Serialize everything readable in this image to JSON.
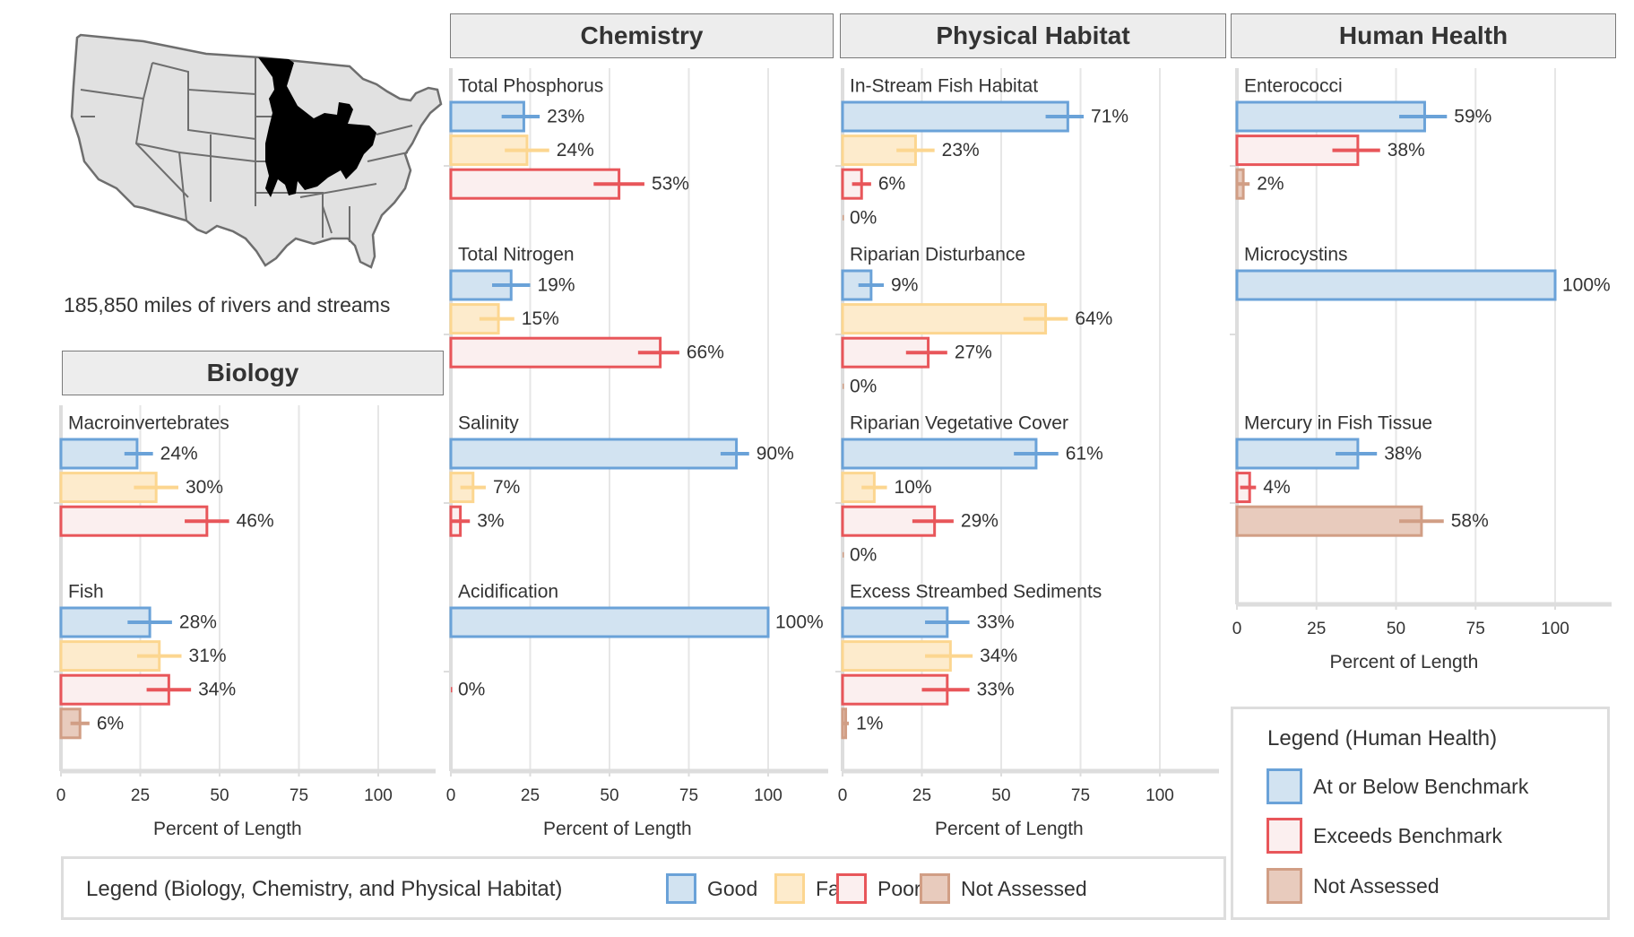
{
  "map": {
    "subtitle": "185,850 miles of rivers and streams",
    "region_highlight": "Upper Mississippi / Midwest basin",
    "land_color": "#e1e1e1",
    "border_color": "#6e6e6e",
    "highlight_color": "#000000"
  },
  "colors": {
    "good": {
      "fill": "#d2e3f1",
      "stroke": "#6aa2d8"
    },
    "fair": {
      "fill": "#fdebcc",
      "stroke": "#fcd690"
    },
    "poor": {
      "fill": "#fbefef",
      "stroke": "#e8565a"
    },
    "not_assessed": {
      "fill": "#e8cbbd",
      "stroke": "#d19e85"
    },
    "grid": "#e6e6e6",
    "axis": "#dddddd"
  },
  "legend_main": {
    "title": "Legend (Biology, Chemistry, and Physical Habitat)",
    "items": [
      {
        "key": "good",
        "label": "Good"
      },
      {
        "key": "fair",
        "label": "Fair"
      },
      {
        "key": "poor",
        "label": "Poor"
      },
      {
        "key": "not_assessed",
        "label": "Not Assessed"
      }
    ]
  },
  "legend_hh": {
    "title": "Legend (Human Health)",
    "items": [
      {
        "key": "good",
        "label": "At or Below Benchmark"
      },
      {
        "key": "poor",
        "label": "Exceeds Benchmark"
      },
      {
        "key": "not_assessed",
        "label": "Not Assessed"
      }
    ]
  },
  "chart_data": [
    {
      "type": "bar",
      "title": "Biology",
      "xlabel": "Percent of Length",
      "xlim": [
        0,
        115
      ],
      "ticks": [
        0,
        25,
        50,
        75,
        100
      ],
      "grid": true,
      "indicators": [
        {
          "name": "Macroinvertebrates",
          "bars": [
            {
              "cat": "good",
              "value": 24,
              "ci": [
                20,
                29
              ],
              "label": "24%"
            },
            {
              "cat": "fair",
              "value": 30,
              "ci": [
                23,
                37
              ],
              "label": "30%"
            },
            {
              "cat": "poor",
              "value": 46,
              "ci": [
                39,
                53
              ],
              "label": "46%"
            }
          ]
        },
        {
          "name": "Fish",
          "bars": [
            {
              "cat": "good",
              "value": 28,
              "ci": [
                21,
                35
              ],
              "label": "28%"
            },
            {
              "cat": "fair",
              "value": 31,
              "ci": [
                24,
                38
              ],
              "label": "31%"
            },
            {
              "cat": "poor",
              "value": 34,
              "ci": [
                27,
                41
              ],
              "label": "34%"
            },
            {
              "cat": "not_assessed",
              "value": 6,
              "ci": [
                3,
                9
              ],
              "label": "6%"
            }
          ]
        }
      ]
    },
    {
      "type": "bar",
      "title": "Chemistry",
      "xlabel": "Percent of Length",
      "xlim": [
        0,
        115
      ],
      "ticks": [
        0,
        25,
        50,
        75,
        100
      ],
      "grid": true,
      "indicators": [
        {
          "name": "Total Phosphorus",
          "bars": [
            {
              "cat": "good",
              "value": 23,
              "ci": [
                16,
                28
              ],
              "label": "23%"
            },
            {
              "cat": "fair",
              "value": 24,
              "ci": [
                17,
                31
              ],
              "label": "24%"
            },
            {
              "cat": "poor",
              "value": 53,
              "ci": [
                45,
                61
              ],
              "label": "53%"
            }
          ]
        },
        {
          "name": "Total Nitrogen",
          "bars": [
            {
              "cat": "good",
              "value": 19,
              "ci": [
                13,
                25
              ],
              "label": "19%"
            },
            {
              "cat": "fair",
              "value": 15,
              "ci": [
                9,
                20
              ],
              "label": "15%"
            },
            {
              "cat": "poor",
              "value": 66,
              "ci": [
                59,
                72
              ],
              "label": "66%"
            }
          ]
        },
        {
          "name": "Salinity",
          "bars": [
            {
              "cat": "good",
              "value": 90,
              "ci": [
                85,
                94
              ],
              "label": "90%"
            },
            {
              "cat": "fair",
              "value": 7,
              "ci": [
                3,
                11
              ],
              "label": "7%"
            },
            {
              "cat": "poor",
              "value": 3,
              "ci": [
                0,
                6
              ],
              "label": "3%"
            }
          ]
        },
        {
          "name": "Acidification",
          "bars": [
            {
              "cat": "good",
              "value": 100,
              "ci": [
                100,
                100
              ],
              "label": "100%"
            },
            {
              "cat": "poor",
              "value": 0,
              "ci": [
                0,
                0
              ],
              "label": "0%"
            }
          ]
        }
      ]
    },
    {
      "type": "bar",
      "title": "Physical Habitat",
      "xlabel": "Percent of Length",
      "xlim": [
        0,
        115
      ],
      "ticks": [
        0,
        25,
        50,
        75,
        100
      ],
      "grid": true,
      "indicators": [
        {
          "name": "In-Stream Fish Habitat",
          "bars": [
            {
              "cat": "good",
              "value": 71,
              "ci": [
                64,
                76
              ],
              "label": "71%"
            },
            {
              "cat": "fair",
              "value": 23,
              "ci": [
                17,
                29
              ],
              "label": "23%"
            },
            {
              "cat": "poor",
              "value": 6,
              "ci": [
                3,
                9
              ],
              "label": "6%"
            },
            {
              "cat": "not_assessed",
              "value": 0,
              "ci": [
                0,
                0
              ],
              "label": "0%"
            }
          ]
        },
        {
          "name": "Riparian Disturbance",
          "bars": [
            {
              "cat": "good",
              "value": 9,
              "ci": [
                5,
                13
              ],
              "label": "9%"
            },
            {
              "cat": "fair",
              "value": 64,
              "ci": [
                57,
                71
              ],
              "label": "64%"
            },
            {
              "cat": "poor",
              "value": 27,
              "ci": [
                20,
                33
              ],
              "label": "27%"
            },
            {
              "cat": "not_assessed",
              "value": 0,
              "ci": [
                0,
                0
              ],
              "label": "0%"
            }
          ]
        },
        {
          "name": "Riparian Vegetative Cover",
          "bars": [
            {
              "cat": "good",
              "value": 61,
              "ci": [
                54,
                68
              ],
              "label": "61%"
            },
            {
              "cat": "fair",
              "value": 10,
              "ci": [
                6,
                14
              ],
              "label": "10%"
            },
            {
              "cat": "poor",
              "value": 29,
              "ci": [
                22,
                35
              ],
              "label": "29%"
            },
            {
              "cat": "not_assessed",
              "value": 0,
              "ci": [
                0,
                0
              ],
              "label": "0%"
            }
          ]
        },
        {
          "name": "Excess Streambed Sediments",
          "bars": [
            {
              "cat": "good",
              "value": 33,
              "ci": [
                26,
                40
              ],
              "label": "33%"
            },
            {
              "cat": "fair",
              "value": 34,
              "ci": [
                26,
                41
              ],
              "label": "34%"
            },
            {
              "cat": "poor",
              "value": 33,
              "ci": [
                25,
                40
              ],
              "label": "33%"
            },
            {
              "cat": "not_assessed",
              "value": 1,
              "ci": [
                0,
                2
              ],
              "label": "1%"
            }
          ]
        }
      ]
    },
    {
      "type": "bar",
      "title": "Human Health",
      "xlabel": "Percent of Length",
      "xlim": [
        0,
        115
      ],
      "ticks": [
        0,
        25,
        50,
        75,
        100
      ],
      "grid": true,
      "indicators": [
        {
          "name": "Enterococci",
          "bars": [
            {
              "cat": "good",
              "value": 59,
              "ci": [
                51,
                66
              ],
              "label": "59%"
            },
            {
              "cat": "poor",
              "value": 38,
              "ci": [
                30,
                45
              ],
              "label": "38%"
            },
            {
              "cat": "not_assessed",
              "value": 2,
              "ci": [
                0,
                4
              ],
              "label": "2%"
            }
          ]
        },
        {
          "name": "Microcystins",
          "bars": [
            {
              "cat": "good",
              "value": 100,
              "ci": [
                100,
                100
              ],
              "label": "100%"
            }
          ]
        },
        {
          "name": "Mercury in Fish Tissue",
          "bars": [
            {
              "cat": "good",
              "value": 38,
              "ci": [
                31,
                44
              ],
              "label": "38%"
            },
            {
              "cat": "poor",
              "value": 4,
              "ci": [
                1,
                6
              ],
              "label": "4%"
            },
            {
              "cat": "not_assessed",
              "value": 58,
              "ci": [
                51,
                65
              ],
              "label": "58%"
            }
          ]
        }
      ]
    }
  ]
}
